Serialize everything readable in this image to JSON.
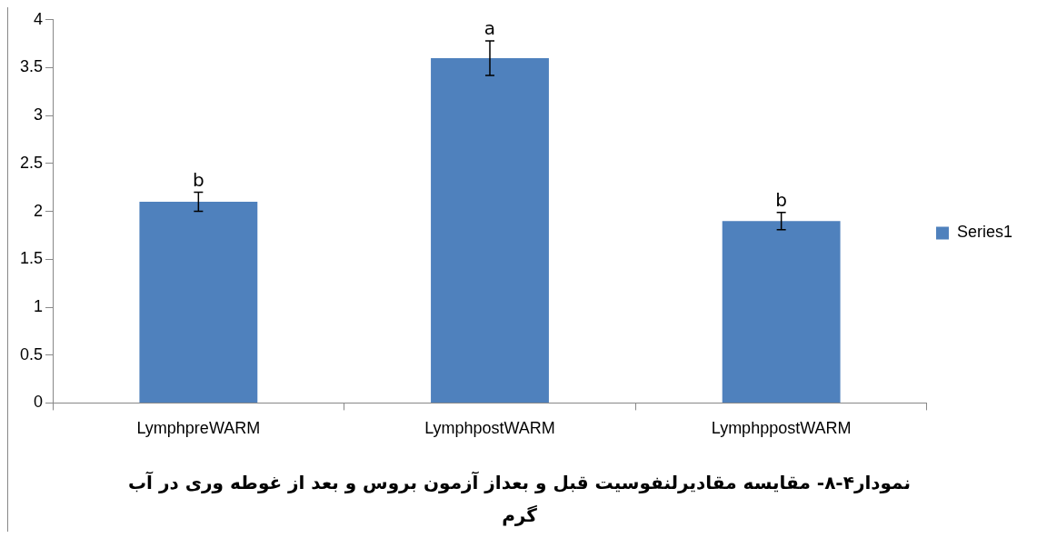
{
  "chart_data": {
    "type": "bar",
    "title": "نمودار۴-۸- مقایسه مقادیرلنفوسیت قبل و  بعداز آزمون بروس و بعد از غوطه وری در آب گرم",
    "categories": [
      "LymphpreWARM",
      "LymphpostWARM",
      "LymphppostWARM"
    ],
    "series": [
      {
        "name": "Series1",
        "color": "#4f81bd",
        "values": [
          2.1,
          3.6,
          1.9
        ],
        "errors": [
          0.1,
          0.18,
          0.09
        ]
      }
    ],
    "ylim": [
      0,
      4
    ],
    "yticks": [
      0,
      0.5,
      1,
      1.5,
      2,
      2.5,
      3,
      3.5,
      4
    ],
    "grid": false,
    "legend": "right",
    "annotations": [
      {
        "text": "b",
        "x": "LymphpreWARM",
        "y": 2.2
      },
      {
        "text": "a",
        "x": "LymphpostWARM",
        "y": 3.78
      },
      {
        "text": "b",
        "x": "LymphppostWARM",
        "y": 1.99
      }
    ]
  }
}
